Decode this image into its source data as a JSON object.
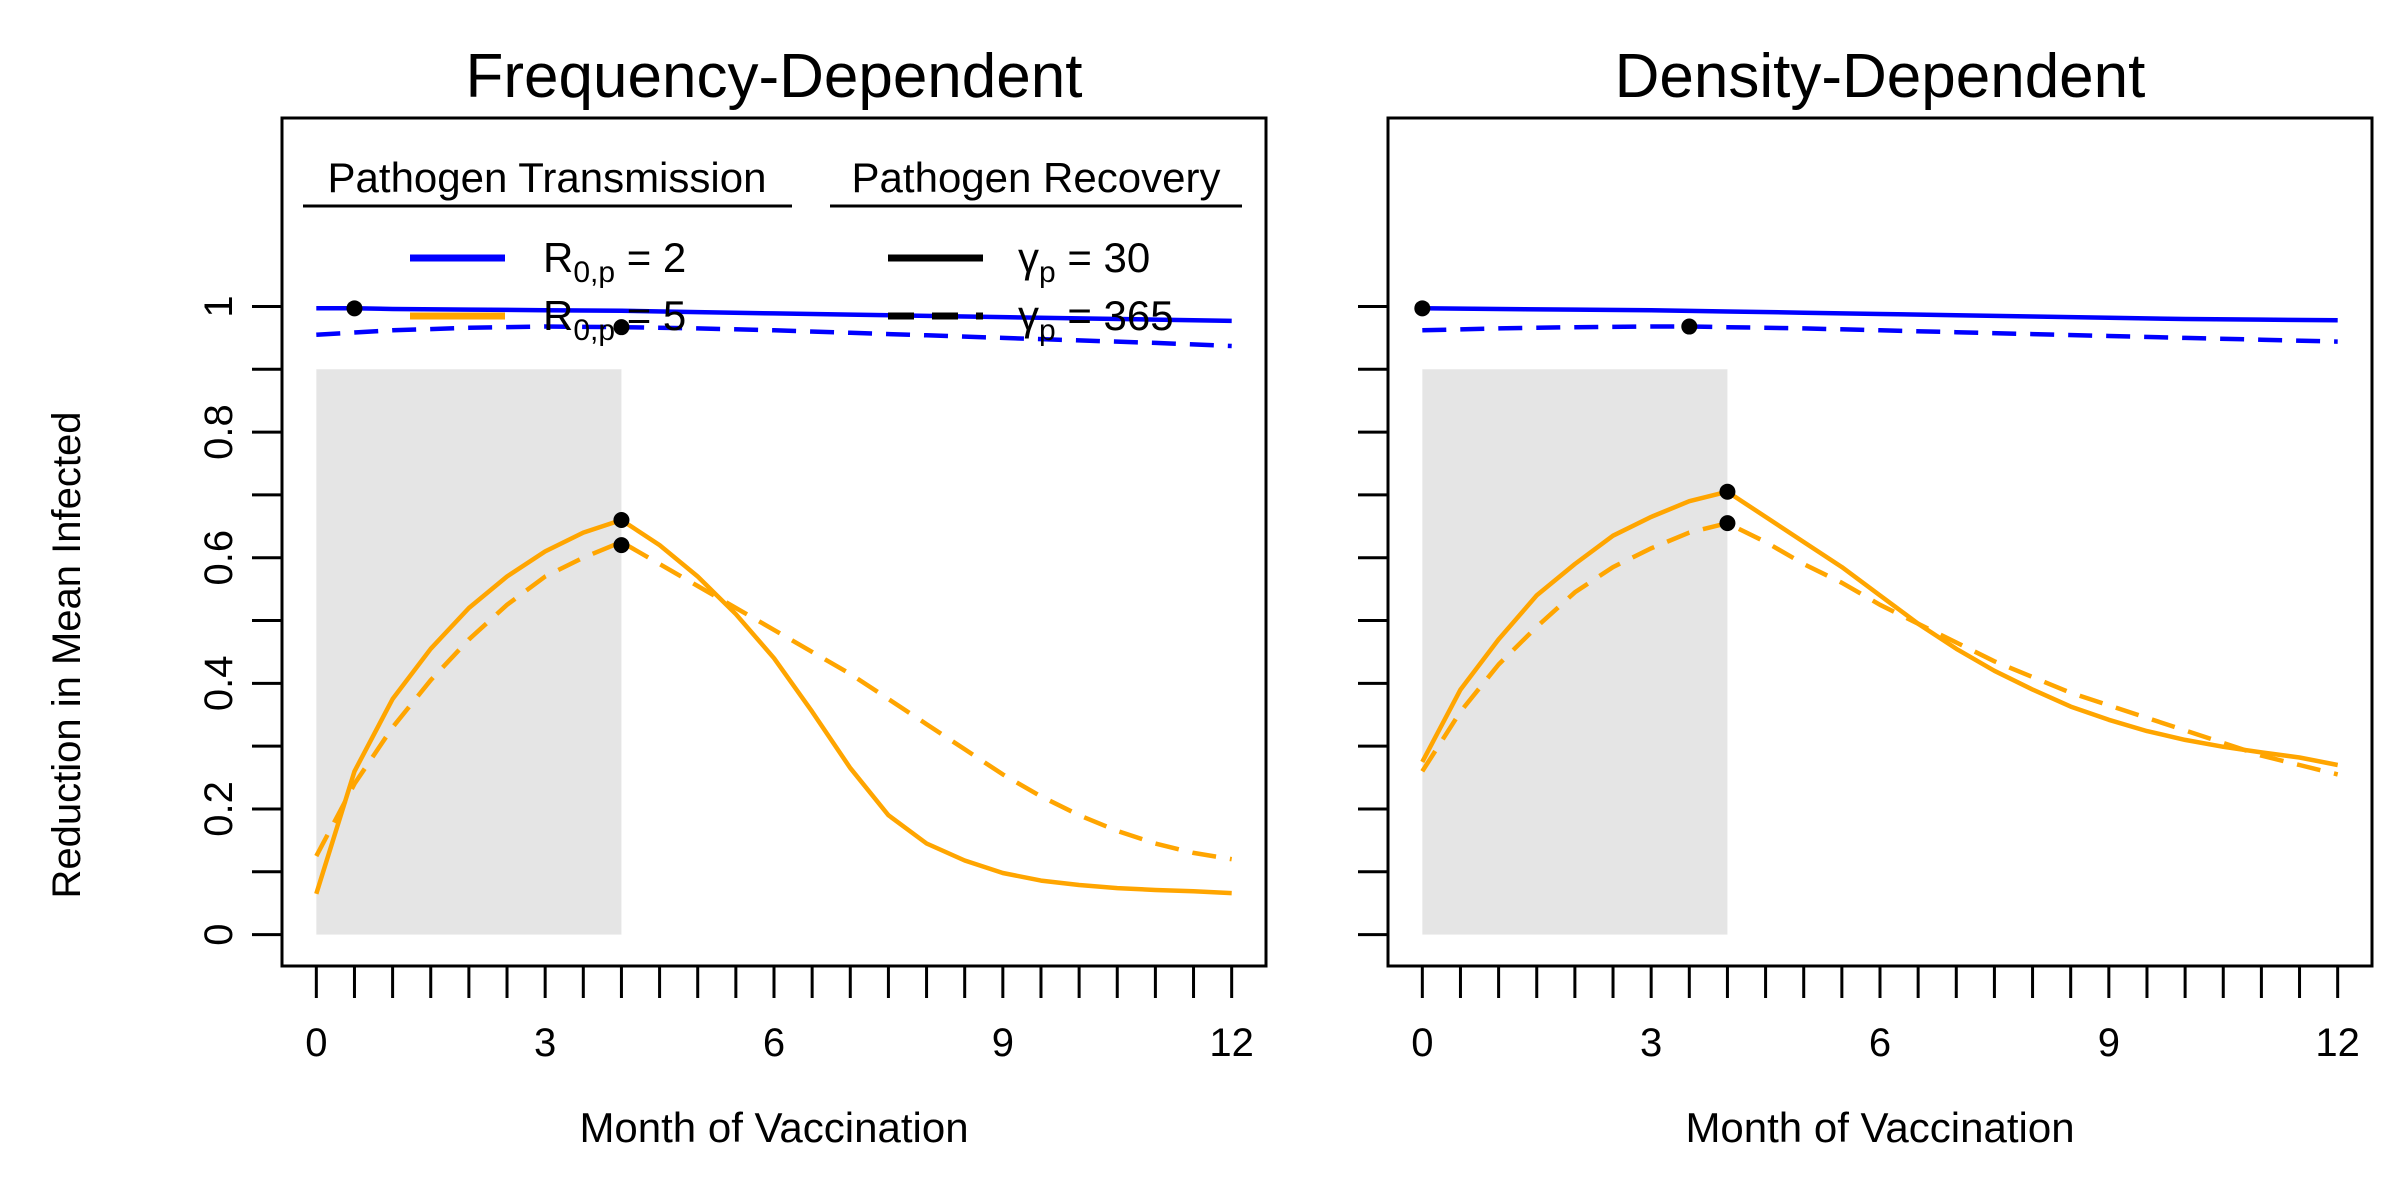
{
  "figure": {
    "ylabel": "Reduction in Mean Infected"
  },
  "legend": {
    "transmission_title": "Pathogen Transmission",
    "recovery_title": "Pathogen Recovery",
    "transmission_entries": [
      {
        "prefix": "R",
        "sub": "0,p",
        "suffix": " = 2",
        "color": "#0000FF"
      },
      {
        "prefix": "R",
        "sub": "0,p",
        "suffix": " = 5",
        "color": "#FFA500"
      }
    ],
    "recovery_entries": [
      {
        "prefix": "γ",
        "sub": "p",
        "suffix": " = 30",
        "dash": "solid"
      },
      {
        "prefix": "γ",
        "sub": "p",
        "suffix": " = 365",
        "dash": "dashed"
      }
    ]
  },
  "chart_data": [
    {
      "type": "line",
      "title": "Frequency-Dependent",
      "xlabel": "Month of Vaccination",
      "ylabel": "Reduction in Mean Infected",
      "xlim": [
        -0.45,
        12.45
      ],
      "ylim": [
        -0.05,
        1.3
      ],
      "xticks": [
        0,
        0.5,
        1,
        1.5,
        2,
        2.5,
        3,
        3.5,
        4,
        4.5,
        5,
        5.5,
        6,
        6.5,
        7,
        7.5,
        8,
        8.5,
        9,
        9.5,
        10,
        10.5,
        11,
        11.5,
        12
      ],
      "xtick_labels": [
        {
          "x": 0,
          "label": "0"
        },
        {
          "x": 3,
          "label": "3"
        },
        {
          "x": 6,
          "label": "6"
        },
        {
          "x": 9,
          "label": "9"
        },
        {
          "x": 12,
          "label": "12"
        }
      ],
      "yticks": [
        0,
        0.1,
        0.2,
        0.3,
        0.4,
        0.5,
        0.6,
        0.7,
        0.8,
        0.9,
        1
      ],
      "ytick_labels": [
        {
          "y": 0,
          "label": "0"
        },
        {
          "y": 0.2,
          "label": "0.2"
        },
        {
          "y": 0.4,
          "label": "0.4"
        },
        {
          "y": 0.6,
          "label": "0.6"
        },
        {
          "y": 0.8,
          "label": "0.8"
        },
        {
          "y": 1,
          "label": "1"
        }
      ],
      "shaded_region": {
        "x": [
          0,
          4
        ],
        "y": [
          0,
          0.9
        ],
        "color": "#E5E5E5"
      },
      "series": [
        {
          "color": "#0000FF",
          "dash": "solid",
          "x": [
            0,
            0.5,
            1,
            2,
            3,
            4,
            5,
            6,
            7,
            8,
            9,
            10,
            11,
            12
          ],
          "y": [
            0.997,
            0.997,
            0.996,
            0.995,
            0.994,
            0.993,
            0.991,
            0.989,
            0.987,
            0.985,
            0.983,
            0.981,
            0.979,
            0.977
          ]
        },
        {
          "color": "#0000FF",
          "dash": "dashed",
          "x": [
            0,
            1,
            2,
            3,
            4,
            5,
            6,
            7,
            8,
            9,
            10,
            11,
            12
          ],
          "y": [
            0.955,
            0.962,
            0.966,
            0.968,
            0.967,
            0.965,
            0.962,
            0.958,
            0.954,
            0.95,
            0.946,
            0.942,
            0.937
          ]
        },
        {
          "color": "#FFA500",
          "dash": "solid",
          "x": [
            0,
            0.5,
            1,
            1.5,
            2,
            2.5,
            3,
            3.5,
            4,
            4.5,
            5,
            5.5,
            6,
            6.5,
            7,
            7.5,
            8,
            8.5,
            9,
            9.5,
            10,
            10.5,
            11,
            11.5,
            12
          ],
          "y": [
            0.065,
            0.26,
            0.375,
            0.455,
            0.52,
            0.57,
            0.61,
            0.64,
            0.66,
            0.62,
            0.57,
            0.51,
            0.44,
            0.355,
            0.265,
            0.19,
            0.145,
            0.118,
            0.098,
            0.086,
            0.079,
            0.074,
            0.071,
            0.069,
            0.066
          ]
        },
        {
          "color": "#FFA500",
          "dash": "dashed",
          "x": [
            0,
            0.5,
            1,
            1.5,
            2,
            2.5,
            3,
            3.5,
            4,
            4.5,
            5,
            5.5,
            6,
            6.5,
            7,
            7.5,
            8,
            8.5,
            9,
            9.5,
            10,
            10.5,
            11,
            11.5,
            12
          ],
          "y": [
            0.125,
            0.24,
            0.33,
            0.405,
            0.47,
            0.525,
            0.57,
            0.6,
            0.625,
            0.59,
            0.555,
            0.52,
            0.485,
            0.45,
            0.415,
            0.375,
            0.335,
            0.295,
            0.255,
            0.22,
            0.19,
            0.165,
            0.145,
            0.13,
            0.12
          ]
        }
      ],
      "markers": [
        {
          "x": 0.5,
          "y": 0.997
        },
        {
          "x": 4,
          "y": 0.967
        },
        {
          "x": 4,
          "y": 0.66
        },
        {
          "x": 4,
          "y": 0.62
        }
      ]
    },
    {
      "type": "line",
      "title": "Density-Dependent",
      "xlabel": "Month of Vaccination",
      "ylabel": "",
      "xlim": [
        -0.45,
        12.45
      ],
      "ylim": [
        -0.05,
        1.3
      ],
      "xticks": [
        0,
        0.5,
        1,
        1.5,
        2,
        2.5,
        3,
        3.5,
        4,
        4.5,
        5,
        5.5,
        6,
        6.5,
        7,
        7.5,
        8,
        8.5,
        9,
        9.5,
        10,
        10.5,
        11,
        11.5,
        12
      ],
      "xtick_labels": [
        {
          "x": 0,
          "label": "0"
        },
        {
          "x": 3,
          "label": "3"
        },
        {
          "x": 6,
          "label": "6"
        },
        {
          "x": 9,
          "label": "9"
        },
        {
          "x": 12,
          "label": "12"
        }
      ],
      "yticks": [
        0,
        0.1,
        0.2,
        0.3,
        0.4,
        0.5,
        0.6,
        0.7,
        0.8,
        0.9,
        1
      ],
      "ytick_labels": [],
      "shaded_region": {
        "x": [
          0,
          4
        ],
        "y": [
          0,
          0.9
        ],
        "color": "#E5E5E5"
      },
      "series": [
        {
          "color": "#0000FF",
          "dash": "solid",
          "x": [
            0,
            1,
            2,
            3,
            4,
            5,
            6,
            7,
            8,
            9,
            10,
            11,
            12
          ],
          "y": [
            0.997,
            0.996,
            0.995,
            0.994,
            0.992,
            0.99,
            0.988,
            0.986,
            0.984,
            0.982,
            0.98,
            0.979,
            0.978
          ]
        },
        {
          "color": "#0000FF",
          "dash": "dashed",
          "x": [
            0,
            1,
            2,
            3,
            3.5,
            4,
            5,
            6,
            7,
            8,
            9,
            10,
            11,
            12
          ],
          "y": [
            0.962,
            0.965,
            0.967,
            0.968,
            0.968,
            0.967,
            0.965,
            0.962,
            0.959,
            0.956,
            0.953,
            0.95,
            0.947,
            0.944
          ]
        },
        {
          "color": "#FFA500",
          "dash": "solid",
          "x": [
            0,
            0.5,
            1,
            1.5,
            2,
            2.5,
            3,
            3.5,
            4,
            4.5,
            5,
            5.5,
            6,
            6.5,
            7,
            7.5,
            8,
            8.5,
            9,
            9.5,
            10,
            10.5,
            11,
            11.5,
            12
          ],
          "y": [
            0.275,
            0.39,
            0.47,
            0.54,
            0.59,
            0.635,
            0.665,
            0.69,
            0.705,
            0.665,
            0.625,
            0.585,
            0.54,
            0.495,
            0.455,
            0.42,
            0.39,
            0.363,
            0.342,
            0.324,
            0.31,
            0.299,
            0.29,
            0.282,
            0.27
          ]
        },
        {
          "color": "#FFA500",
          "dash": "dashed",
          "x": [
            0,
            0.5,
            1,
            1.5,
            2,
            2.5,
            3,
            3.5,
            4,
            4.5,
            5,
            5.5,
            6,
            6.5,
            7,
            7.5,
            8,
            8.5,
            9,
            9.5,
            10,
            10.5,
            11,
            11.5,
            12
          ],
          "y": [
            0.26,
            0.355,
            0.43,
            0.49,
            0.545,
            0.585,
            0.615,
            0.64,
            0.655,
            0.625,
            0.59,
            0.56,
            0.525,
            0.495,
            0.465,
            0.435,
            0.41,
            0.385,
            0.365,
            0.345,
            0.325,
            0.305,
            0.285,
            0.27,
            0.255
          ]
        }
      ],
      "markers": [
        {
          "x": 0,
          "y": 0.997
        },
        {
          "x": 3.5,
          "y": 0.968
        },
        {
          "x": 4,
          "y": 0.705
        },
        {
          "x": 4,
          "y": 0.655
        }
      ]
    }
  ]
}
